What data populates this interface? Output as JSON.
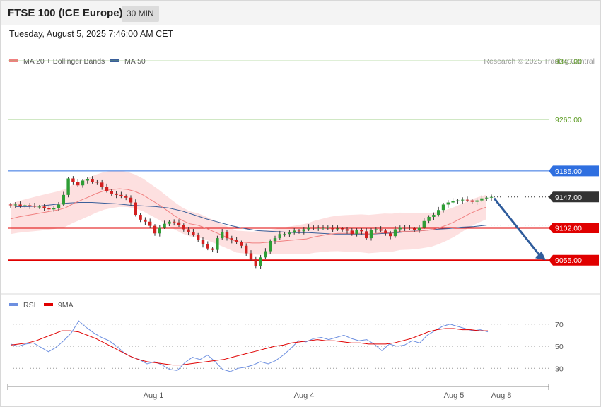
{
  "header": {
    "title": "FTSE 100 (ICE Europe)",
    "timeframe": "30 MIN",
    "datetime": "Tuesday, August 5, 2025 7:46:00 AM CET"
  },
  "credit": "Research © 2025 Trading Central",
  "colors": {
    "ma20": "#f08080",
    "ma50": "#3a5f9a",
    "bollinger_fill": "#fde0e0",
    "bull": "#2e9e36",
    "bear": "#d32020",
    "target_line": "#80c060",
    "target_text": "#5a9a20",
    "resistance_line": "#2f6fe0",
    "resistance_tag": "#2f6fe0",
    "support_line": "#e00000",
    "support_tag": "#e00000",
    "price_tag": "#333333",
    "arrow": "#2f5c9c",
    "rsi": "#6d8fe0",
    "rsi_ma": "#e00000"
  },
  "chart_data": [
    {
      "type": "candlestick",
      "legend": [
        {
          "label": "MA 20 + Bollinger Bands",
          "color": "#f08080"
        },
        {
          "label": "MA 50",
          "color": "#3a5f9a"
        }
      ],
      "ylim": [
        9012,
        9370
      ],
      "levels": [
        {
          "kind": "target",
          "value": 9345.0,
          "label": "9345.00"
        },
        {
          "kind": "target",
          "value": 9260.0,
          "label": "9260.00"
        },
        {
          "kind": "resistance",
          "value": 9185.0,
          "label": "9185.00"
        },
        {
          "kind": "last",
          "value": 9147.0,
          "label": "9147.00"
        },
        {
          "kind": "support",
          "value": 9102.0,
          "label": "9102.00"
        },
        {
          "kind": "support",
          "value": 9055.0,
          "label": "9055.00"
        }
      ],
      "close": [
        9135,
        9136,
        9134,
        9135,
        9134,
        9133,
        9133,
        9131,
        9129,
        9131,
        9136,
        9150,
        9174,
        9169,
        9164,
        9171,
        9173,
        9169,
        9168,
        9162,
        9156,
        9152,
        9150,
        9148,
        9146,
        9139,
        9121,
        9114,
        9111,
        9105,
        9094,
        9103,
        9108,
        9111,
        9110,
        9106,
        9100,
        9096,
        9092,
        9085,
        9078,
        9072,
        9070,
        9087,
        9096,
        9087,
        9084,
        9081,
        9076,
        9065,
        9057,
        9047,
        9059,
        9068,
        9083,
        9087,
        9093,
        9093,
        9095,
        9098,
        9097,
        9100,
        9103,
        9102,
        9102,
        9102,
        9103,
        9100,
        9101,
        9100,
        9098,
        9093,
        9099,
        9097,
        9087,
        9099,
        9100,
        9098,
        9094,
        9090,
        9100,
        9103,
        9102,
        9101,
        9099,
        9103,
        9112,
        9118,
        9121,
        9128,
        9136,
        9139,
        9141,
        9142,
        9143,
        9142,
        9140,
        9142,
        9145,
        9146,
        9147
      ],
      "ma20": [
        9115,
        9118,
        9120,
        9122,
        9124,
        9126,
        9128,
        9131,
        9137,
        9142,
        9147,
        9152,
        9156,
        9158,
        9159,
        9158,
        9155,
        9150,
        9143,
        9136,
        9128,
        9120,
        9113,
        9108,
        9106,
        9102,
        9097,
        9092,
        9087,
        9082,
        9081,
        9080,
        9080,
        9081,
        9082,
        9083,
        9084,
        9085,
        9086,
        9089,
        9091,
        9093,
        9094,
        9094,
        9094,
        9094,
        9093,
        9094,
        9095,
        9095,
        9097,
        9097,
        9097,
        9098,
        9099,
        9102,
        9106,
        9111,
        9117,
        9123,
        9128,
        9132
      ],
      "ma50": [
        9133,
        9133,
        9134,
        9136,
        9138,
        9139,
        9139,
        9138,
        9137,
        9135,
        9134,
        9133,
        9131,
        9127,
        9121,
        9115,
        9110,
        9105,
        9101,
        9098,
        9097,
        9096,
        9095,
        9095,
        9094,
        9093,
        9093,
        9093,
        9093,
        9094,
        9095,
        9097,
        9098,
        9100,
        9101,
        9103,
        9104,
        9106
      ]
    },
    {
      "type": "line",
      "legend": [
        {
          "label": "RSI",
          "color": "#6d8fe0"
        },
        {
          "label": "9MA",
          "color": "#e00000"
        }
      ],
      "ylim": [
        18,
        82
      ],
      "ticks": [
        70,
        50,
        30
      ],
      "rsi": [
        52,
        50,
        52,
        53,
        49,
        45,
        49,
        55,
        62,
        73,
        67,
        62,
        58,
        55,
        50,
        44,
        40,
        38,
        34,
        36,
        33,
        29,
        28,
        35,
        40,
        38,
        42,
        36,
        29,
        27,
        30,
        31,
        33,
        36,
        34,
        37,
        42,
        48,
        55,
        54,
        57,
        58,
        56,
        58,
        60,
        57,
        55,
        56,
        52,
        46,
        52,
        50,
        51,
        55,
        53,
        60,
        64,
        68,
        70,
        68,
        66,
        64,
        65,
        63
      ],
      "rsi_ma": [
        51,
        52,
        53,
        55,
        58,
        61,
        64,
        64,
        63,
        60,
        57,
        53,
        49,
        45,
        41,
        38,
        36,
        35,
        34,
        33,
        33,
        34,
        35,
        36,
        37,
        38,
        40,
        42,
        44,
        46,
        48,
        50,
        51,
        53,
        54,
        55,
        56,
        55,
        55,
        54,
        53,
        53,
        52,
        52,
        52,
        53,
        55,
        57,
        60,
        63,
        65,
        66,
        66,
        65,
        65,
        64,
        64
      ]
    }
  ],
  "xaxis": {
    "ticks": [
      "Aug 1",
      "Aug 4",
      "Aug 5",
      "Aug 8"
    ]
  }
}
